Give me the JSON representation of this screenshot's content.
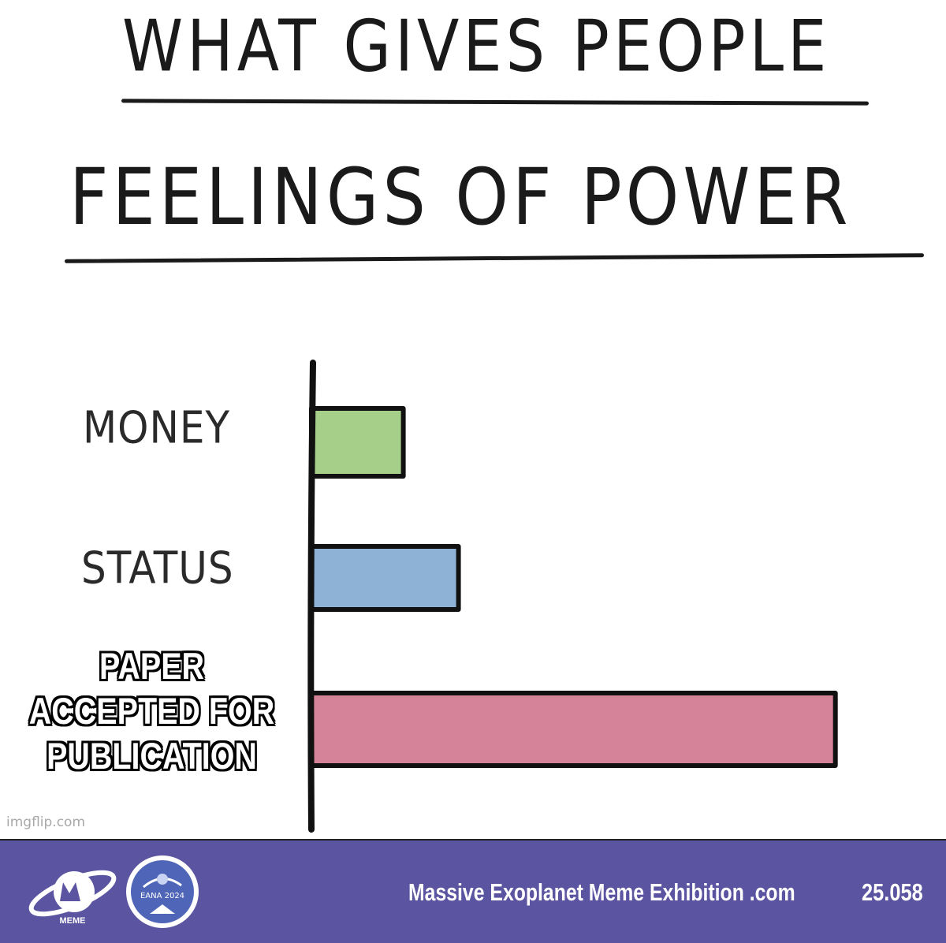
{
  "chart_data": {
    "type": "bar",
    "orientation": "horizontal",
    "title": [
      "WHAT GIVES PEOPLE",
      "FEELINGS OF POWER"
    ],
    "categories": [
      "MONEY",
      "STATUS",
      "PAPER ACCEPTED FOR PUBLICATION"
    ],
    "category_display_lines": [
      "PAPER",
      "ACCEPTED FOR",
      "PUBLICATION"
    ],
    "values": [
      1.0,
      1.6,
      5.7
    ],
    "xlim": [
      0,
      6.2
    ],
    "colors": [
      "#a6cf8a",
      "#8eb2d6",
      "#d58399"
    ],
    "bar_edge_color": "#111111",
    "axes_visible": false,
    "grid": false
  },
  "watermark": "imgflip.com",
  "footer": {
    "background": "#5b55a1",
    "logo_text": "MEME",
    "badge_text": "EANA 2024",
    "site": "Massive Exoplanet Meme Exhibition .com",
    "code": "25.058"
  }
}
